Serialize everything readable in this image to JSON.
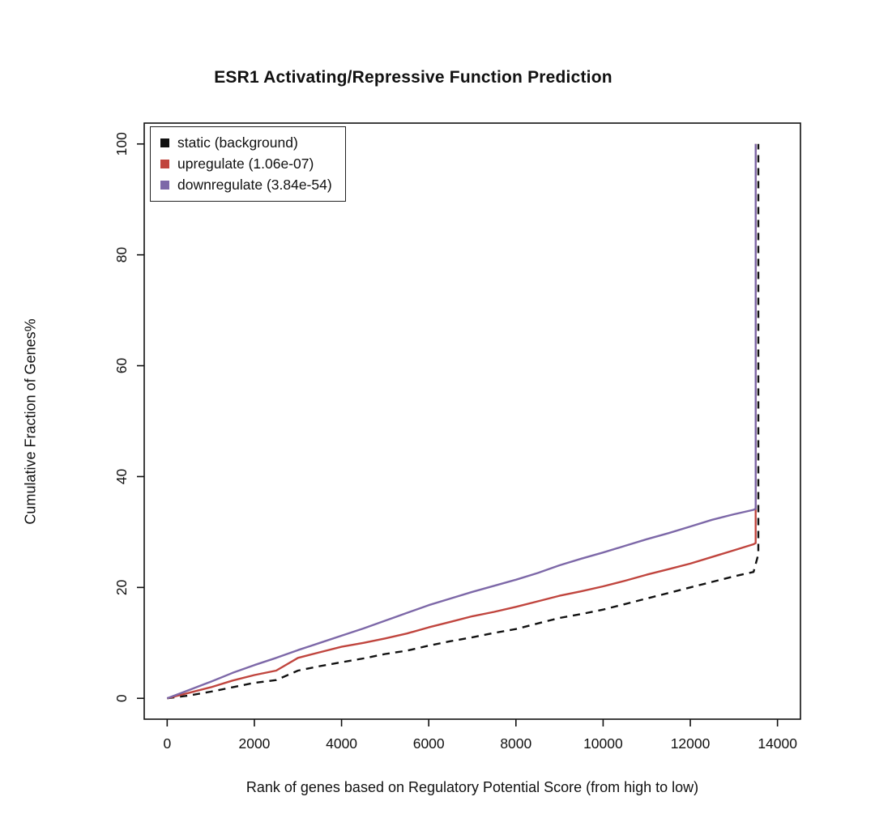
{
  "title": "ESR1 Activating/Repressive Function Prediction",
  "chart_data": {
    "type": "line",
    "title": "ESR1 Activating/Repressive Function Prediction",
    "xlabel": "Rank of genes based on Regulatory Potential Score (from high to low)",
    "ylabel": "Cumulative Fraction of Genes%",
    "xlim": [
      0,
      14000
    ],
    "ylim": [
      0,
      100
    ],
    "xticks": [
      0,
      2000,
      4000,
      6000,
      8000,
      10000,
      12000,
      14000
    ],
    "yticks": [
      0,
      20,
      40,
      60,
      80,
      100
    ],
    "grid": false,
    "legend_position": "top-left",
    "axis_color": "#111111",
    "series": [
      {
        "name": "static (background)",
        "color": "#111111",
        "style": "dashed",
        "points": [
          [
            0,
            0
          ],
          [
            500,
            0.5
          ],
          [
            1000,
            1.2
          ],
          [
            1500,
            2.0
          ],
          [
            2000,
            2.8
          ],
          [
            2500,
            3.3
          ],
          [
            3000,
            5.0
          ],
          [
            3500,
            5.8
          ],
          [
            4000,
            6.5
          ],
          [
            4500,
            7.2
          ],
          [
            5000,
            8.0
          ],
          [
            5500,
            8.6
          ],
          [
            6000,
            9.5
          ],
          [
            6500,
            10.3
          ],
          [
            7000,
            11.0
          ],
          [
            7500,
            11.8
          ],
          [
            8000,
            12.5
          ],
          [
            8500,
            13.5
          ],
          [
            9000,
            14.5
          ],
          [
            9500,
            15.2
          ],
          [
            10000,
            16.0
          ],
          [
            10500,
            17.0
          ],
          [
            11000,
            18.0
          ],
          [
            11500,
            19.0
          ],
          [
            12000,
            20.0
          ],
          [
            12500,
            21.0
          ],
          [
            13000,
            22.0
          ],
          [
            13450,
            22.8
          ],
          [
            13560,
            26.0
          ],
          [
            13560,
            100
          ]
        ]
      },
      {
        "name": "upregulate (1.06e-07)",
        "color": "#c0453e",
        "style": "solid",
        "points": [
          [
            0,
            0
          ],
          [
            500,
            1.0
          ],
          [
            1000,
            2.0
          ],
          [
            1500,
            3.2
          ],
          [
            2000,
            4.2
          ],
          [
            2500,
            5.0
          ],
          [
            3000,
            7.3
          ],
          [
            3500,
            8.3
          ],
          [
            4000,
            9.3
          ],
          [
            4500,
            10.0
          ],
          [
            5000,
            10.8
          ],
          [
            5500,
            11.7
          ],
          [
            6000,
            12.8
          ],
          [
            6500,
            13.8
          ],
          [
            7000,
            14.8
          ],
          [
            7500,
            15.6
          ],
          [
            8000,
            16.5
          ],
          [
            8500,
            17.5
          ],
          [
            9000,
            18.5
          ],
          [
            9500,
            19.3
          ],
          [
            10000,
            20.2
          ],
          [
            10500,
            21.2
          ],
          [
            11000,
            22.3
          ],
          [
            11500,
            23.3
          ],
          [
            12000,
            24.3
          ],
          [
            12500,
            25.5
          ],
          [
            13000,
            26.7
          ],
          [
            13450,
            27.8
          ],
          [
            13500,
            28.0
          ],
          [
            13500,
            100
          ]
        ]
      },
      {
        "name": "downregulate (3.84e-54)",
        "color": "#7d68a8",
        "style": "solid",
        "points": [
          [
            0,
            0
          ],
          [
            500,
            1.5
          ],
          [
            1000,
            3.0
          ],
          [
            1500,
            4.6
          ],
          [
            2000,
            6.0
          ],
          [
            2500,
            7.3
          ],
          [
            3000,
            8.7
          ],
          [
            3500,
            10.0
          ],
          [
            4000,
            11.3
          ],
          [
            4500,
            12.6
          ],
          [
            5000,
            14.0
          ],
          [
            5500,
            15.4
          ],
          [
            6000,
            16.8
          ],
          [
            6500,
            18.0
          ],
          [
            7000,
            19.2
          ],
          [
            7500,
            20.3
          ],
          [
            8000,
            21.4
          ],
          [
            8500,
            22.6
          ],
          [
            9000,
            24.0
          ],
          [
            9500,
            25.2
          ],
          [
            10000,
            26.3
          ],
          [
            10500,
            27.5
          ],
          [
            11000,
            28.7
          ],
          [
            11500,
            29.8
          ],
          [
            12000,
            31.0
          ],
          [
            12500,
            32.2
          ],
          [
            13000,
            33.2
          ],
          [
            13450,
            34.0
          ],
          [
            13500,
            34.2
          ],
          [
            13500,
            100
          ]
        ]
      }
    ]
  }
}
